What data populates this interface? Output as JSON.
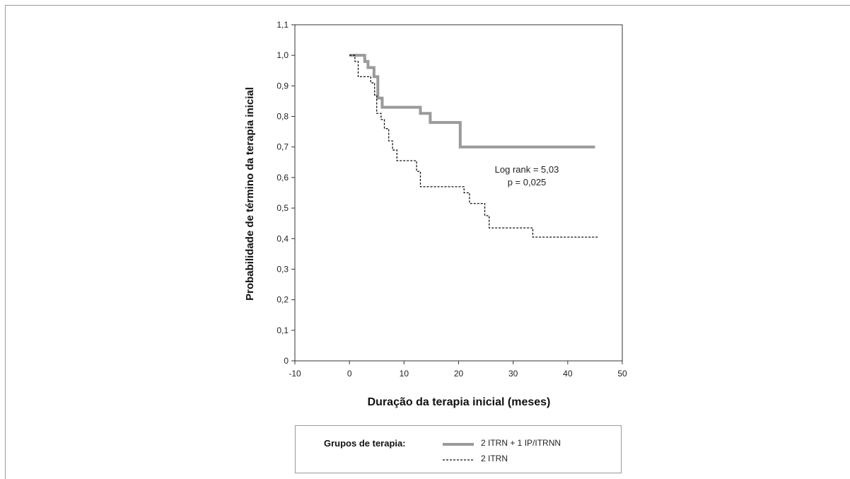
{
  "chart_data": {
    "type": "line",
    "xlabel": "Duração da terapia inicial (meses)",
    "ylabel": "Probabilidade de término da terapia inicial",
    "xlim": [
      -10,
      50
    ],
    "ylim": [
      0,
      1.1
    ],
    "x_ticks": [
      "-10",
      "0",
      "10",
      "20",
      "30",
      "40",
      "50"
    ],
    "x_tick_values": [
      -10,
      0,
      10,
      20,
      30,
      40,
      50
    ],
    "y_ticks": [
      "0",
      "0,1",
      "0,2",
      "0,3",
      "0,4",
      "0,5",
      "0,6",
      "0,7",
      "0,8",
      "0,9",
      "1,0",
      "1,1"
    ],
    "y_tick_values": [
      0,
      0.1,
      0.2,
      0.3,
      0.4,
      0.5,
      0.6,
      0.7,
      0.8,
      0.9,
      1.0,
      1.1
    ],
    "grid": false,
    "annotations": [
      "Log rank = 5,03",
      "p = 0,025"
    ],
    "series": [
      {
        "name": "2 ITRN + 1 IP/ITRNN",
        "style": "solid-thick",
        "color": "#9a9a9a",
        "x": [
          0,
          2.8,
          3.4,
          4.5,
          5.2,
          6.0,
          13.0,
          14.8,
          20.3,
          45
        ],
        "y": [
          1.0,
          0.98,
          0.96,
          0.93,
          0.86,
          0.83,
          0.81,
          0.78,
          0.7,
          0.7
        ]
      },
      {
        "name": "2 ITRN",
        "style": "dashed",
        "color": "#111111",
        "x": [
          0,
          1.0,
          1.6,
          3.9,
          4.6,
          5.0,
          5.8,
          6.4,
          7.2,
          7.9,
          8.7,
          12.3,
          13.0,
          21.0,
          22.0,
          24.8,
          25.6,
          33.6,
          45.5
        ],
        "y": [
          1.0,
          0.98,
          0.93,
          0.91,
          0.87,
          0.81,
          0.79,
          0.76,
          0.72,
          0.69,
          0.655,
          0.62,
          0.57,
          0.55,
          0.515,
          0.475,
          0.435,
          0.405,
          0.405
        ]
      }
    ]
  },
  "legend": {
    "title": "Grupos de terapia:",
    "items": [
      "2 ITRN + 1 IP/ITRNN",
      "2 ITRN"
    ]
  }
}
